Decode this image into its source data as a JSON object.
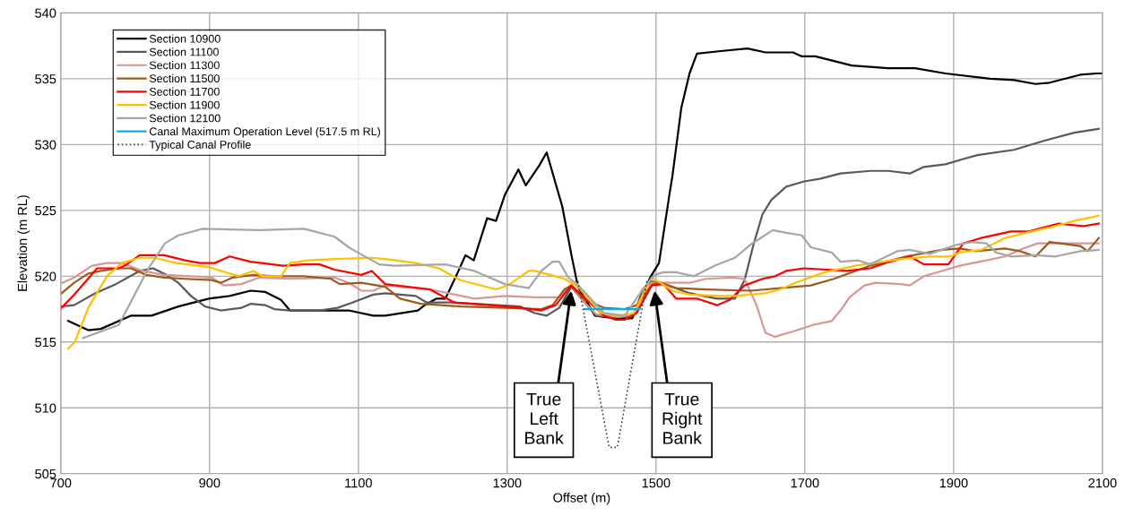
{
  "chart_data": {
    "type": "line",
    "xlabel": "Offset (m)",
    "ylabel": "Elevation (m RL)",
    "xlim": [
      700,
      2100
    ],
    "xticks": [
      700,
      900,
      1100,
      1300,
      1500,
      1700,
      1900,
      2100
    ],
    "ylim": [
      505,
      540
    ],
    "yticks": [
      505,
      510,
      515,
      520,
      525,
      530,
      535,
      540
    ],
    "grid": true,
    "legend": "top left",
    "marker": "none",
    "line_style": "solid",
    "annotations": [
      {
        "text": "True\nLeft\nBank",
        "x": 1386,
        "y": 518.9
      },
      {
        "text": "True\nRight\nBank",
        "x": 1498,
        "y": 518.9
      }
    ],
    "series": [
      {
        "name": "Section 10900",
        "color": "#000000",
        "x": [
          710,
          737,
          754,
          794,
          822,
          858,
          899,
          927,
          955,
          975,
          996,
          1008,
          1048,
          1087,
          1120,
          1136,
          1180,
          1189,
          1205,
          1217,
          1232,
          1244,
          1255,
          1273,
          1285,
          1297,
          1315,
          1325,
          1343,
          1353,
          1374,
          1386,
          1395,
          1418,
          1445,
          1468,
          1482,
          1492,
          1504,
          1518,
          1522,
          1534,
          1545,
          1555,
          1587,
          1623,
          1647,
          1684,
          1696,
          1714,
          1763,
          1812,
          1848,
          1889,
          1949,
          1981,
          2010,
          2029,
          2070,
          2092,
          2100
        ],
        "values": [
          516.6,
          515.9,
          516.0,
          517.0,
          517.0,
          517.7,
          518.3,
          518.5,
          518.9,
          518.8,
          518.2,
          517.4,
          517.4,
          517.4,
          517.0,
          517.0,
          517.4,
          517.8,
          518.3,
          518.3,
          520.1,
          521.6,
          521.2,
          524.4,
          524.2,
          526.2,
          528.1,
          526.9,
          528.4,
          529.4,
          525.3,
          521.7,
          519.2,
          517.0,
          516.8,
          516.8,
          518.5,
          519.9,
          521.0,
          526.2,
          527.6,
          532.8,
          535.4,
          536.9,
          537.1,
          537.3,
          537.0,
          537.0,
          536.7,
          536.7,
          536.0,
          535.8,
          535.8,
          535.4,
          535.0,
          534.9,
          534.6,
          534.7,
          535.3,
          535.4,
          535.4
        ]
      },
      {
        "name": "Section 11100",
        "color": "#595959",
        "x": [
          701,
          718,
          746,
          774,
          806,
          824,
          842,
          858,
          875,
          894,
          915,
          943,
          955,
          975,
          987,
          1008,
          1048,
          1072,
          1092,
          1120,
          1136,
          1177,
          1192,
          1229,
          1317,
          1337,
          1353,
          1370,
          1386,
          1404,
          1420,
          1450,
          1470,
          1482,
          1494,
          1506,
          1546,
          1582,
          1606,
          1619,
          1631,
          1643,
          1655,
          1675,
          1699,
          1720,
          1748,
          1788,
          1812,
          1841,
          1860,
          1889,
          1913,
          1932,
          1981,
          2022,
          2062,
          2095
        ],
        "values": [
          517.7,
          517.8,
          518.7,
          519.4,
          520.4,
          520.6,
          520.1,
          519.5,
          518.5,
          517.7,
          517.4,
          517.6,
          517.9,
          517.8,
          517.5,
          517.4,
          517.4,
          517.6,
          518.0,
          518.6,
          518.7,
          518.5,
          518.0,
          518.0,
          517.7,
          517.2,
          517.0,
          517.6,
          519.2,
          518.0,
          517.0,
          516.9,
          517.0,
          519.0,
          519.6,
          519.5,
          518.7,
          518.3,
          518.3,
          519.7,
          522.4,
          524.7,
          525.8,
          526.8,
          527.2,
          527.4,
          527.8,
          528.0,
          528.0,
          527.8,
          528.3,
          528.5,
          528.9,
          529.2,
          529.6,
          530.3,
          530.9,
          531.2
        ]
      },
      {
        "name": "Section 11300",
        "color": "#d99694",
        "x": [
          702,
          718,
          742,
          762,
          782,
          810,
          839,
          875,
          903,
          919,
          943,
          967,
          1008,
          1068,
          1087,
          1104,
          1120,
          1136,
          1196,
          1256,
          1297,
          1337,
          1370,
          1386,
          1404,
          1420,
          1450,
          1470,
          1484,
          1494,
          1506,
          1546,
          1567,
          1603,
          1619,
          1635,
          1647,
          1660,
          1684,
          1711,
          1736,
          1748,
          1760,
          1780,
          1796,
          1829,
          1841,
          1860,
          1884,
          1908,
          1944,
          1969,
          1993,
          2013,
          2049,
          2095
        ],
        "values": [
          519.5,
          519.9,
          520.8,
          521.0,
          521.0,
          520.4,
          520.1,
          520.0,
          519.9,
          519.3,
          519.4,
          519.9,
          519.8,
          519.9,
          519.5,
          518.9,
          518.9,
          519.3,
          519.0,
          518.3,
          518.5,
          518.4,
          518.4,
          519.3,
          518.0,
          517.1,
          516.9,
          517.1,
          518.5,
          519.5,
          519.5,
          519.5,
          519.8,
          519.9,
          519.8,
          517.8,
          515.7,
          515.4,
          515.8,
          516.3,
          516.6,
          517.4,
          518.4,
          519.3,
          519.5,
          519.4,
          519.3,
          520.0,
          520.4,
          520.8,
          521.2,
          521.5,
          522.1,
          522.5,
          522.5,
          522.5
        ]
      },
      {
        "name": "Section 11500",
        "color": "#9c5a1e",
        "x": [
          701,
          718,
          737,
          754,
          778,
          794,
          815,
          839,
          867,
          903,
          915,
          931,
          959,
          987,
          1027,
          1063,
          1075,
          1104,
          1136,
          1156,
          1184,
          1237,
          1297,
          1346,
          1361,
          1377,
          1386,
          1404,
          1430,
          1458,
          1474,
          1486,
          1496,
          1506,
          1527,
          1567,
          1627,
          1667,
          1708,
          1739,
          1788,
          1836,
          1884,
          1908,
          1929,
          1969,
          1989,
          2010,
          2029,
          2070,
          2080,
          2095
        ],
        "values": [
          518.7,
          519.5,
          520.2,
          520.4,
          520.6,
          520.6,
          520.1,
          519.9,
          519.8,
          519.7,
          519.5,
          519.9,
          520.1,
          520.0,
          520.0,
          519.8,
          519.4,
          519.5,
          519.2,
          518.3,
          517.9,
          517.7,
          517.6,
          517.5,
          517.8,
          519.0,
          519.3,
          518.2,
          517.6,
          517.5,
          517.8,
          518.7,
          519.4,
          519.5,
          519.1,
          519.0,
          518.9,
          519.1,
          519.3,
          519.8,
          520.8,
          521.5,
          522.0,
          522.1,
          521.9,
          522.1,
          521.9,
          521.5,
          522.6,
          522.3,
          521.9,
          522.9
        ]
      },
      {
        "name": "Section 11700",
        "color": "#ff0000",
        "x": [
          701,
          718,
          749,
          778,
          786,
          806,
          839,
          867,
          887,
          907,
          927,
          955,
          999,
          1027,
          1048,
          1068,
          1104,
          1118,
          1136,
          1196,
          1229,
          1277,
          1317,
          1346,
          1365,
          1386,
          1430,
          1446,
          1458,
          1474,
          1494,
          1510,
          1527,
          1555,
          1582,
          1599,
          1619,
          1643,
          1660,
          1675,
          1699,
          1756,
          1788,
          1808,
          1841,
          1860,
          1893,
          1913,
          1937,
          1977,
          2001,
          2041,
          2074,
          2095
        ],
        "values": [
          517.6,
          518.6,
          520.6,
          520.6,
          520.8,
          521.6,
          521.6,
          521.2,
          521.0,
          521.0,
          521.5,
          521.1,
          520.8,
          520.9,
          520.9,
          520.5,
          520.1,
          520.4,
          519.4,
          519.0,
          518.0,
          517.8,
          517.6,
          517.4,
          517.8,
          519.3,
          517.0,
          516.7,
          516.7,
          517.2,
          519.3,
          519.4,
          518.3,
          518.3,
          517.8,
          518.2,
          519.3,
          519.8,
          520.0,
          520.4,
          520.6,
          520.4,
          520.6,
          521.0,
          521.5,
          520.9,
          520.9,
          522.5,
          522.9,
          523.4,
          523.4,
          524.0,
          523.8,
          524.0
        ]
      },
      {
        "name": "Section 11900",
        "color": "#ffc000",
        "x": [
          710,
          719,
          737,
          762,
          782,
          806,
          826,
          855,
          899,
          927,
          939,
          959,
          971,
          996,
          1008,
          1032,
          1068,
          1118,
          1136,
          1177,
          1208,
          1237,
          1285,
          1301,
          1329,
          1337,
          1358,
          1377,
          1395,
          1426,
          1450,
          1470,
          1494,
          1506,
          1522,
          1546,
          1587,
          1606,
          1647,
          1667,
          1687,
          1727,
          1768,
          1829,
          1868,
          1896,
          1908,
          1937,
          1969,
          1997,
          2029,
          2062,
          2095
        ],
        "values": [
          514.5,
          515.0,
          517.6,
          520.0,
          521.0,
          521.4,
          521.4,
          521.0,
          520.7,
          520.2,
          520.0,
          520.4,
          520.0,
          520.0,
          521.0,
          521.2,
          521.3,
          521.4,
          521.3,
          521.0,
          520.6,
          519.7,
          519.0,
          519.3,
          520.4,
          520.4,
          520.1,
          519.8,
          519.2,
          517.2,
          517.0,
          517.2,
          519.9,
          519.5,
          518.9,
          518.6,
          518.5,
          518.5,
          518.7,
          519.0,
          519.5,
          520.3,
          520.8,
          521.3,
          521.5,
          521.5,
          521.8,
          522.0,
          522.9,
          523.3,
          523.7,
          524.2,
          524.6
        ]
      },
      {
        "name": "Section 12100",
        "color": "#a6a6a6",
        "x": [
          730,
          778,
          803,
          818,
          840,
          858,
          891,
          967,
          1027,
          1068,
          1087,
          1096,
          1128,
          1148,
          1217,
          1256,
          1297,
          1329,
          1346,
          1361,
          1370,
          1382,
          1394,
          1430,
          1458,
          1482,
          1498,
          1510,
          1527,
          1551,
          1579,
          1606,
          1627,
          1657,
          1675,
          1696,
          1708,
          1736,
          1748,
          1772,
          1788,
          1824,
          1841,
          1868,
          1905,
          1925,
          1944,
          1957,
          1977,
          2010,
          2037,
          2070,
          2095
        ],
        "values": [
          515.3,
          516.3,
          519.0,
          520.6,
          522.5,
          523.1,
          523.6,
          523.5,
          523.6,
          523.0,
          522.2,
          521.9,
          520.9,
          520.8,
          520.9,
          520.4,
          519.4,
          519.1,
          520.4,
          521.1,
          521.1,
          519.9,
          519.4,
          517.2,
          517.0,
          519.0,
          520.1,
          520.3,
          520.3,
          520.0,
          520.8,
          521.4,
          522.4,
          523.5,
          523.3,
          523.1,
          522.2,
          521.8,
          521.1,
          521.2,
          520.9,
          521.9,
          522.0,
          521.7,
          522.4,
          522.6,
          522.5,
          521.8,
          521.5,
          521.6,
          521.5,
          521.9,
          522.0
        ]
      },
      {
        "name": "Canal Maximum Operation Level (517.5 m RL)",
        "color": "#00b0f0",
        "x": [
          1404,
          1478
        ],
        "values": [
          517.5,
          517.5
        ]
      },
      {
        "name": "Typical Canal Profile",
        "color": "#404040",
        "line_style": "dotted",
        "x": [
          1395,
          1437,
          1448,
          1488
        ],
        "values": [
          519.6,
          507.0,
          507.0,
          519.7
        ]
      }
    ]
  }
}
